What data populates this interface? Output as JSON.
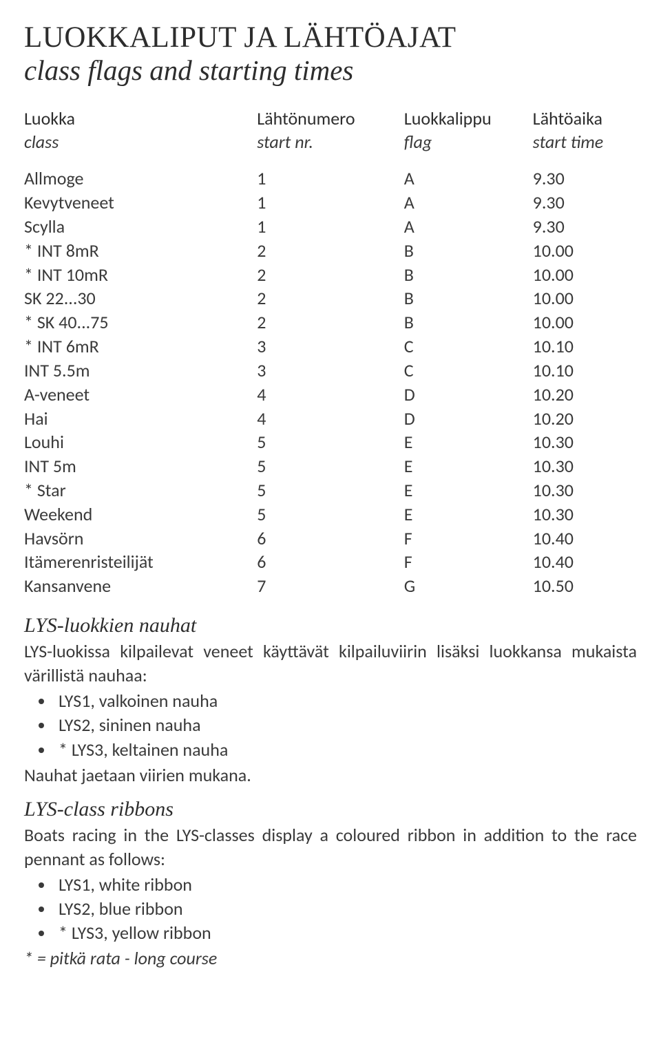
{
  "title": {
    "main": "LUOKKALIPUT JA LÄHTÖAJAT",
    "sub": "class flags and starting times"
  },
  "table": {
    "header": {
      "fi": [
        "Luokka",
        "Lähtönumero",
        "Luokkalippu",
        "Lähtöaika"
      ],
      "en": [
        "class",
        "start nr.",
        "flag",
        "start time"
      ]
    },
    "rows": [
      {
        "class": "Allmoge",
        "nr": "1",
        "flag": "A",
        "time": "9.30"
      },
      {
        "class": "Kevytveneet",
        "nr": "1",
        "flag": "A",
        "time": "9.30"
      },
      {
        "class": "Scylla",
        "nr": "1",
        "flag": "A",
        "time": "9.30"
      },
      {
        "class": "* INT 8mR",
        "nr": "2",
        "flag": "B",
        "time": "10.00"
      },
      {
        "class": "* INT 10mR",
        "nr": "2",
        "flag": "B",
        "time": "10.00"
      },
      {
        "class": "SK 22...30",
        "nr": "2",
        "flag": "B",
        "time": "10.00"
      },
      {
        "class": "* SK 40...75",
        "nr": "2",
        "flag": "B",
        "time": "10.00"
      },
      {
        "class": "* INT 6mR",
        "nr": "3",
        "flag": "C",
        "time": "10.10"
      },
      {
        "class": "INT 5.5m",
        "nr": "3",
        "flag": "C",
        "time": "10.10"
      },
      {
        "class": "A-veneet",
        "nr": "4",
        "flag": "D",
        "time": "10.20"
      },
      {
        "class": "Hai",
        "nr": "4",
        "flag": "D",
        "time": "10.20"
      },
      {
        "class": "Louhi",
        "nr": "5",
        "flag": "E",
        "time": "10.30"
      },
      {
        "class": "INT 5m",
        "nr": "5",
        "flag": "E",
        "time": "10.30"
      },
      {
        "class": "* Star",
        "nr": "5",
        "flag": "E",
        "time": "10.30"
      },
      {
        "class": "Weekend",
        "nr": "5",
        "flag": "E",
        "time": "10.30"
      },
      {
        "class": "Havsörn",
        "nr": "6",
        "flag": "F",
        "time": "10.40"
      },
      {
        "class": "Itämerenristeilijät",
        "nr": "6",
        "flag": "F",
        "time": "10.40"
      },
      {
        "class": "Kansanvene",
        "nr": "7",
        "flag": "G",
        "time": "10.50"
      }
    ]
  },
  "lys_fi": {
    "heading": "LYS-luokkien nauhat",
    "intro": "LYS-luokissa kilpailevat veneet käyttävät kilpailuviirin lisäksi luokkansa mukaista värillistä nauhaa:",
    "items": [
      "LYS1, valkoinen nauha",
      "LYS2, sininen nauha",
      "* LYS3, keltainen nauha"
    ],
    "after": "Nauhat jaetaan viirien mukana."
  },
  "lys_en": {
    "heading": "LYS-class ribbons",
    "intro": "Boats racing in the LYS-classes display a coloured ribbon in addition to the race pennant as follows:",
    "items": [
      "LYS1, white ribbon",
      "LYS2, blue ribbon",
      "* LYS3, yellow ribbon"
    ]
  },
  "footnote": "* = pitkä rata - long course"
}
